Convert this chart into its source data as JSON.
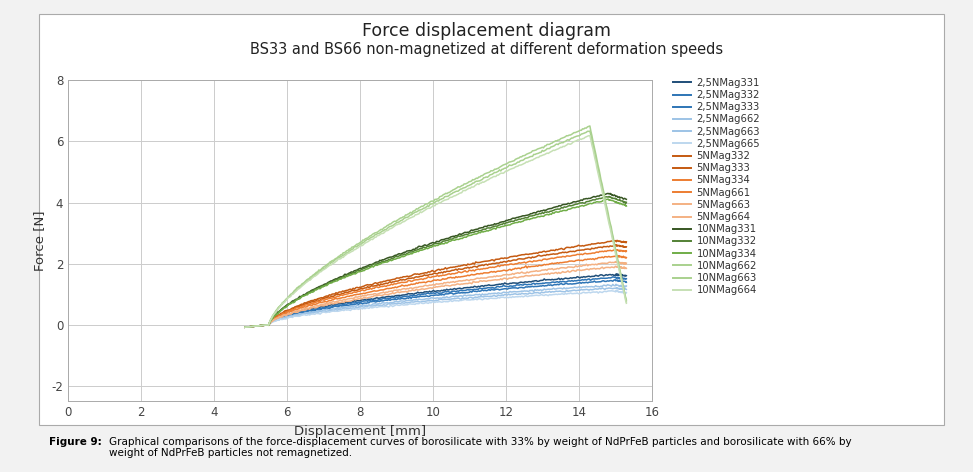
{
  "title_line1": "Force displacement diagram",
  "title_line2": "BS33 and BS66 non-magnetized at different deformation speeds",
  "xlabel": "Displacement [mm]",
  "ylabel": "Force [N]",
  "xlim": [
    0,
    16
  ],
  "ylim": [
    -2.5,
    8
  ],
  "xticks": [
    0,
    2,
    4,
    6,
    8,
    10,
    12,
    14,
    16
  ],
  "yticks": [
    -2,
    0,
    2,
    4,
    6,
    8
  ],
  "bg_color": "#f0f0f0",
  "plot_bg_color": "#ffffff",
  "grid_color": "#cccccc",
  "caption_bold": "Figure 9: ",
  "caption_normal": "Graphical comparisons of the force-displacement curves of borosilicate with 33% by weight of NdPrFeB particles and borosilicate with 66% by\nweight of NdPrFeB particles not remagnetized.",
  "series": [
    {
      "label": "2,5NMag331",
      "color": "#1f4e79",
      "start_x": 5.5,
      "peak_x": 15.0,
      "peak_y": 1.65,
      "end_x": 15.3,
      "end_y": 1.6,
      "power": 0.55
    },
    {
      "label": "2,5NMag332",
      "color": "#2e75b6",
      "start_x": 5.5,
      "peak_x": 15.0,
      "peak_y": 1.55,
      "end_x": 15.3,
      "end_y": 1.5,
      "power": 0.55
    },
    {
      "label": "2,5NMag333",
      "color": "#2e75b6",
      "start_x": 5.5,
      "peak_x": 15.0,
      "peak_y": 1.45,
      "end_x": 15.3,
      "end_y": 1.4,
      "power": 0.55
    },
    {
      "label": "2,5NMag662",
      "color": "#9dc3e6",
      "start_x": 5.5,
      "peak_x": 15.0,
      "peak_y": 1.3,
      "end_x": 15.3,
      "end_y": 1.25,
      "power": 0.55
    },
    {
      "label": "2,5NMag663",
      "color": "#9dc3e6",
      "start_x": 5.5,
      "peak_x": 15.0,
      "peak_y": 1.2,
      "end_x": 15.3,
      "end_y": 1.15,
      "power": 0.55
    },
    {
      "label": "2,5NMag665",
      "color": "#bdd7ee",
      "start_x": 5.5,
      "peak_x": 15.0,
      "peak_y": 1.1,
      "end_x": 15.3,
      "end_y": 1.05,
      "power": 0.55
    },
    {
      "label": "5NMag332",
      "color": "#c55a11",
      "start_x": 5.5,
      "peak_x": 15.0,
      "peak_y": 2.75,
      "end_x": 15.3,
      "end_y": 2.7,
      "power": 0.6
    },
    {
      "label": "5NMag333",
      "color": "#c55a11",
      "start_x": 5.5,
      "peak_x": 15.0,
      "peak_y": 2.6,
      "end_x": 15.3,
      "end_y": 2.55,
      "power": 0.6
    },
    {
      "label": "5NMag334",
      "color": "#ed7d31",
      "start_x": 5.5,
      "peak_x": 15.0,
      "peak_y": 2.45,
      "end_x": 15.3,
      "end_y": 2.4,
      "power": 0.6
    },
    {
      "label": "5NMag661",
      "color": "#ed7d31",
      "start_x": 5.5,
      "peak_x": 15.0,
      "peak_y": 2.25,
      "end_x": 15.3,
      "end_y": 2.2,
      "power": 0.6
    },
    {
      "label": "5NMag663",
      "color": "#f4b183",
      "start_x": 5.5,
      "peak_x": 15.0,
      "peak_y": 2.05,
      "end_x": 15.3,
      "end_y": 2.0,
      "power": 0.6
    },
    {
      "label": "5NMag664",
      "color": "#f4b183",
      "start_x": 5.5,
      "peak_x": 15.0,
      "peak_y": 1.9,
      "end_x": 15.3,
      "end_y": 1.85,
      "power": 0.6
    },
    {
      "label": "10NMag331",
      "color": "#375623",
      "start_x": 5.5,
      "peak_x": 14.8,
      "peak_y": 4.3,
      "end_x": 15.3,
      "end_y": 4.1,
      "power": 0.65
    },
    {
      "label": "10NMag332",
      "color": "#538135",
      "start_x": 5.5,
      "peak_x": 14.8,
      "peak_y": 4.2,
      "end_x": 15.3,
      "end_y": 4.0,
      "power": 0.65
    },
    {
      "label": "10NMag334",
      "color": "#70ad47",
      "start_x": 5.5,
      "peak_x": 14.8,
      "peak_y": 4.1,
      "end_x": 15.3,
      "end_y": 3.9,
      "power": 0.65
    },
    {
      "label": "10NMag662",
      "color": "#a9d18e",
      "start_x": 5.5,
      "peak_x": 14.3,
      "peak_y": 6.5,
      "end_x": 15.3,
      "end_y": 0.8,
      "power": 0.7
    },
    {
      "label": "10NMag663",
      "color": "#a9d18e",
      "start_x": 5.5,
      "peak_x": 14.3,
      "peak_y": 6.35,
      "end_x": 15.3,
      "end_y": 0.75,
      "power": 0.7
    },
    {
      "label": "10NMag664",
      "color": "#c6e0b4",
      "start_x": 5.5,
      "peak_x": 14.3,
      "peak_y": 6.2,
      "end_x": 15.3,
      "end_y": 0.7,
      "power": 0.7
    }
  ]
}
